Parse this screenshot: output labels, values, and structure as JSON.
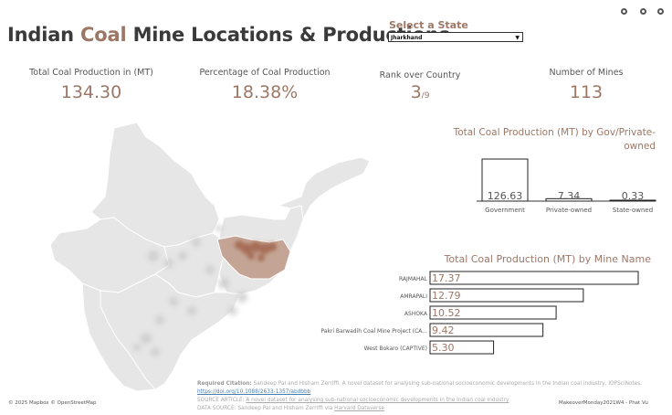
{
  "title": {
    "part1": "Indian ",
    "part2": "Coal",
    "part3": " Mine Locations & Productions"
  },
  "state_selector": {
    "label": "Select a State",
    "value": "Jharkhand"
  },
  "kpis": {
    "total_label": "Total Coal Production in (MT)",
    "total_value": "134.30",
    "pct_label": "Percentage of Coal Production",
    "pct_value": "18.38%",
    "rank_label": "Rank over Country",
    "rank_value": "3",
    "rank_of": "/9",
    "mines_label": "Number of Mines",
    "mines_value": "113"
  },
  "chart_data": [
    {
      "type": "bar",
      "title": "Total Coal Production (MT) by Gov/Private-owned",
      "categories": [
        "Government",
        "Private-owned",
        "State-owned"
      ],
      "values": [
        126.63,
        7.34,
        0.33
      ]
    },
    {
      "type": "bar",
      "orientation": "horizontal",
      "title": "Total Coal Production (MT) by Mine Name",
      "categories": [
        "RAJMAHAL",
        "AMRAPALI",
        "ASHOKA",
        "Pakri Barwadih Coal Mine Project (CA...",
        "West Bokaro (CAPTIVE)"
      ],
      "values": [
        17.37,
        12.79,
        10.52,
        9.42,
        5.3
      ],
      "labels": [
        "17.37",
        "12.79",
        "10.52",
        "9.42",
        "5.30"
      ]
    }
  ],
  "citation": {
    "req_label": "Required Citation:",
    "req_text": " Sandeep Pal and Hisham Zerriffi. A novel dataset for analysing sub-national socioeconomic developments in the Indian coal industry, IOPSciNotes. ",
    "doi": "https://doi.org/10.1088/2633-1357/abdbbb",
    "source_label": "SOURCE ARTICLE: ",
    "source_link": "A novel dataset for analysing sub-national socioeconomic developments in the Indian coal industry",
    "data_label": "DATA SOURCE: Sandeep Pal and Hisham Zerriffi via ",
    "data_link": "Harvard Dataverse"
  },
  "map_attribution": "© 2025 Mapbox  © OpenStreetMap",
  "footer_credit": "MakeoverMonday2021W4 - Phat Vu",
  "colors": {
    "accent": "#9c7766",
    "highlight_state": "#c4a595",
    "mine_dot": "#a0634c",
    "map_gray": "#e6e6e6"
  }
}
